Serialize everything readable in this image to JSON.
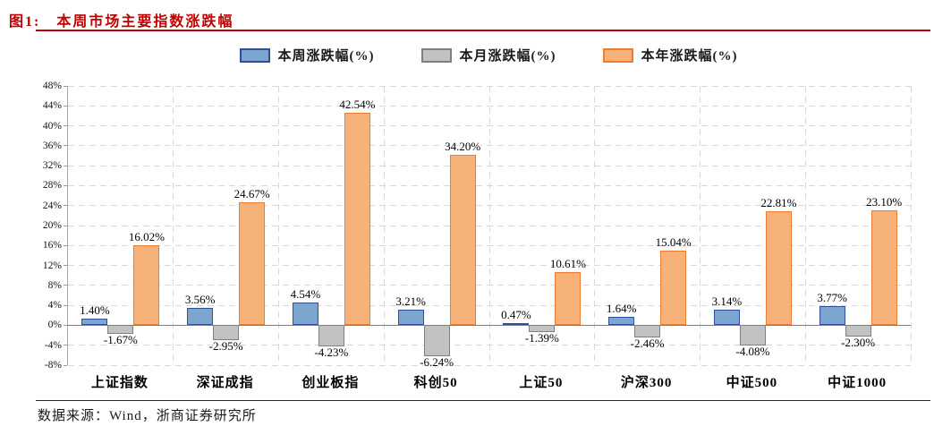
{
  "figure": {
    "title_prefix": "图1:",
    "title": "本周市场主要指数涨跌幅",
    "title_color": "#c00000",
    "source_text": "数据来源：Wind，浙商证券研究所"
  },
  "legend": [
    {
      "label": "本周涨跌幅(%)",
      "fill": "#7ca6cf",
      "border": "#2f4e9b"
    },
    {
      "label": "本月涨跌幅(%)",
      "fill": "#c2c2c2",
      "border": "#7f7f7f"
    },
    {
      "label": "本年涨跌幅(%)",
      "fill": "#f7b279",
      "border": "#ed7d31"
    }
  ],
  "chart_data": {
    "type": "bar",
    "title": "本周市场主要指数涨跌幅",
    "categories": [
      "上证指数",
      "深证成指",
      "创业板指",
      "科创50",
      "上证50",
      "沪深300",
      "中证500",
      "中证1000"
    ],
    "series": [
      {
        "name": "本周涨跌幅(%)",
        "color": "#7ca6cf",
        "border": "#2f4e9b",
        "values": [
          1.4,
          3.56,
          4.54,
          3.21,
          0.47,
          1.64,
          3.14,
          3.77
        ]
      },
      {
        "name": "本月涨跌幅(%)",
        "color": "#c2c2c2",
        "border": "#7f7f7f",
        "values": [
          -1.67,
          -2.95,
          -4.23,
          -6.24,
          -1.39,
          -2.46,
          -4.08,
          -2.3
        ]
      },
      {
        "name": "本年涨跌幅(%)",
        "color": "#f7b279",
        "border": "#ed7d31",
        "values": [
          16.02,
          24.67,
          42.54,
          34.2,
          10.61,
          15.04,
          22.81,
          23.1
        ]
      }
    ],
    "ylim": [
      -8,
      48
    ],
    "ytick_step": 4,
    "yticks": [
      "48%",
      "44%",
      "40%",
      "36%",
      "32%",
      "28%",
      "24%",
      "20%",
      "16%",
      "12%",
      "8%",
      "4%",
      "0%",
      "-4%",
      "-8%"
    ],
    "grid": "dashed",
    "legend_position": "top",
    "value_label_format": "0.00%"
  }
}
